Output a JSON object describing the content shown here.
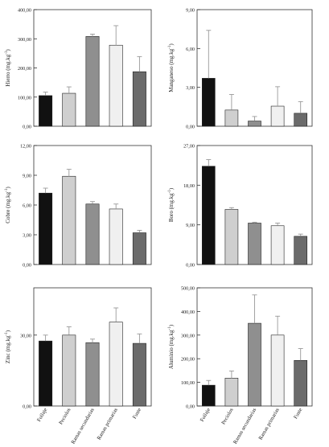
{
  "chart_data": [
    {
      "type": "bar",
      "ylabel": "Hierro (mg.kg",
      "ylabel_sup": "-1",
      "ylabel_tail": ")",
      "yticks": [
        "0,00",
        "100,00",
        "200,00",
        "300,00",
        "400,00"
      ],
      "ylim": [
        0,
        400
      ],
      "categories": [
        "Follaje",
        "Peciolos",
        "Ramas secundarias",
        "Ramas primarias",
        "Fuste"
      ],
      "values": [
        105,
        113,
        308,
        278,
        187
      ],
      "errors": [
        12,
        22,
        8,
        67,
        52
      ]
    },
    {
      "type": "bar",
      "ylabel": "Manganeso (mg.kg",
      "ylabel_sup": "-1",
      "ylabel_tail": ")",
      "yticks": [
        "0,00",
        "3,00",
        "6,00",
        "9,00"
      ],
      "ylim": [
        0,
        9
      ],
      "categories": [
        "Follaje",
        "Peciolos",
        "Ramas secundarias",
        "Ramas primarias",
        "Fuste"
      ],
      "values": [
        3.7,
        1.25,
        0.4,
        1.55,
        1.0
      ],
      "errors": [
        3.7,
        1.2,
        0.35,
        1.5,
        0.9
      ]
    },
    {
      "type": "bar",
      "ylabel": "Cobre (mg.kg",
      "ylabel_sup": "-1",
      "ylabel_tail": ")",
      "yticks": [
        "0,00",
        "3,00",
        "6,00",
        "9,00",
        "12,00"
      ],
      "ylim": [
        0,
        12
      ],
      "categories": [
        "Follaje",
        "Peciolos",
        "Ramas secundarias",
        "Ramas primarias",
        "Fuste"
      ],
      "values": [
        7.2,
        8.9,
        6.1,
        5.6,
        3.2
      ],
      "errors": [
        0.5,
        0.7,
        0.25,
        0.5,
        0.25
      ]
    },
    {
      "type": "bar",
      "ylabel": "Boro (mg.kg",
      "ylabel_sup": "-1",
      "ylabel_tail": ")",
      "yticks": [
        "0,00",
        "9,00",
        "18,00",
        "27,00"
      ],
      "ylim": [
        0,
        27
      ],
      "categories": [
        "Follaje",
        "Peciolos",
        "Ramas secundarias",
        "Ramas primarias",
        "Fuste"
      ],
      "values": [
        22.3,
        12.5,
        9.4,
        8.8,
        6.4
      ],
      "errors": [
        1.5,
        0.4,
        0.2,
        0.6,
        0.5
      ]
    },
    {
      "type": "bar",
      "ylabel": "Zinc (mg.kg",
      "ylabel_sup": "-1",
      "ylabel_tail": ")",
      "yticks": [
        "0,00",
        "30,00"
      ],
      "ylim": [
        0,
        50
      ],
      "categories": [
        "Follaje",
        "Peciolos",
        "Ramas secundarias",
        "Ramas primarias",
        "Fuste"
      ],
      "values": [
        27.5,
        30.0,
        26.8,
        35.5,
        26.5
      ],
      "errors": [
        2.5,
        3.5,
        1.5,
        6.0,
        4.0
      ]
    },
    {
      "type": "bar",
      "ylabel": "Aluminio (mg.kg",
      "ylabel_sup": "-1",
      "ylabel_tail": ")",
      "yticks": [
        "0,00",
        "100,00",
        "200,00",
        "300,00",
        "400,00",
        "500,00"
      ],
      "ylim": [
        0,
        500
      ],
      "categories": [
        "Follaje",
        "Peciolos",
        "Ramas secundarias",
        "Ramas primarias",
        "Fuste"
      ],
      "values": [
        88,
        118,
        350,
        300,
        193
      ],
      "errors": [
        20,
        30,
        120,
        80,
        50
      ]
    }
  ],
  "colors": {
    "bar_fills": [
      "#111111",
      "#cfcfcf",
      "#8f8f8f",
      "#f0f0f0",
      "#6b6b6b"
    ],
    "error_bar": "#999999",
    "axis": "#333333"
  }
}
